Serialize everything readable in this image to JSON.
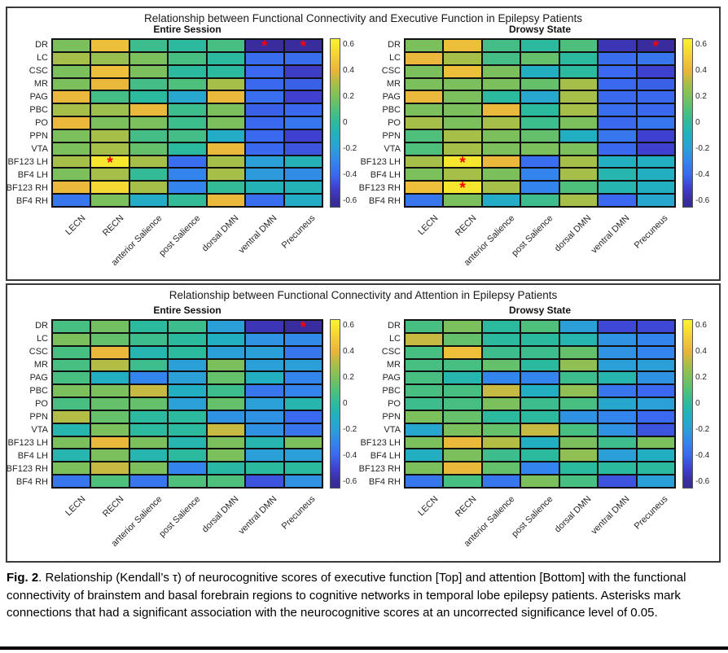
{
  "caption": {
    "label": "Fig. 2",
    "text": ". Relationship (Kendall’s τ) of neurocognitive scores of executive function [Top] and attention [Bottom] with the functional connectivity of brainstem and basal forebrain regions to cognitive networks in temporal lobe epilepsy patients. Asterisks mark connections that had a significant association with the neurocognitive scores at an uncorrected significance level of 0.05."
  },
  "annotations": {
    "significant_marker": "*"
  },
  "colors": {
    "significant_marker": "#ff0000",
    "cell_border": "#111111",
    "panel_border": "#3a3a3a",
    "parula_stops": [
      [
        -0.65,
        "#362C97"
      ],
      [
        -0.6,
        "#392C9E"
      ],
      [
        -0.5,
        "#4040D0"
      ],
      [
        -0.4,
        "#3A68EE"
      ],
      [
        -0.3,
        "#3384EC"
      ],
      [
        -0.2,
        "#2B9FD8"
      ],
      [
        -0.1,
        "#22AFC2"
      ],
      [
        0,
        "#2CBA9E"
      ],
      [
        0.1,
        "#4EC07C"
      ],
      [
        0.2,
        "#7BC05C"
      ],
      [
        0.3,
        "#A5BF49"
      ],
      [
        0.4,
        "#E8B43A"
      ],
      [
        0.5,
        "#F2CA3A"
      ],
      [
        0.6,
        "#F7E62E"
      ],
      [
        0.65,
        "#F9F235"
      ]
    ]
  },
  "chart_data": [
    {
      "type": "heatmap",
      "title": "Relationship between Functional Connectivity and Executive Function in Epilepsy Patients",
      "row_labels": [
        "DR",
        "LC",
        "CSC",
        "MR",
        "PAG",
        "PBC",
        "PO",
        "PPN",
        "VTA",
        "BF123 LH",
        "BF4 LH",
        "BF123 RH",
        "BF4 RH"
      ],
      "col_labels": [
        "LECN",
        "RECN",
        "anterior Salience",
        "post Salience",
        "dorsal DMN",
        "ventral DMN",
        "Precuneus"
      ],
      "value_range": [
        -0.6,
        0.6
      ],
      "colorbar_ticks": [
        "0.6",
        "0.4",
        "0.2",
        "0",
        "-0.2",
        "-0.4",
        "-0.6"
      ],
      "subplots": [
        {
          "title": "Entire Session",
          "values": [
            [
              0.2,
              0.45,
              0.05,
              0.0,
              0.08,
              -0.6,
              -0.6
            ],
            [
              0.3,
              0.27,
              0.2,
              0.08,
              0.0,
              -0.38,
              -0.38
            ],
            [
              0.2,
              0.45,
              0.2,
              0.0,
              0.0,
              -0.4,
              -0.52
            ],
            [
              0.2,
              0.42,
              0.07,
              0.1,
              0.3,
              -0.4,
              -0.42
            ],
            [
              0.42,
              0.07,
              0.0,
              -0.15,
              0.42,
              -0.38,
              -0.5
            ],
            [
              0.3,
              0.28,
              0.42,
              0.05,
              0.2,
              -0.42,
              -0.4
            ],
            [
              0.42,
              0.2,
              0.2,
              0.05,
              0.2,
              -0.4,
              -0.35
            ],
            [
              0.2,
              0.3,
              0.07,
              0.07,
              -0.12,
              -0.4,
              -0.5
            ],
            [
              0.2,
              0.3,
              0.15,
              0.0,
              0.42,
              -0.4,
              -0.45
            ],
            [
              0.3,
              0.6,
              0.3,
              -0.38,
              0.3,
              -0.2,
              -0.07
            ],
            [
              0.2,
              0.3,
              0.02,
              -0.3,
              0.3,
              -0.22,
              -0.27
            ],
            [
              0.42,
              0.55,
              0.3,
              -0.3,
              0.02,
              -0.07,
              -0.07
            ],
            [
              -0.35,
              0.2,
              -0.12,
              0.02,
              0.42,
              -0.38,
              -0.12
            ]
          ],
          "significant": [
            [
              "DR",
              "ventral DMN"
            ],
            [
              "DR",
              "Precuneus"
            ],
            [
              "BF123 LH",
              "RECN"
            ]
          ]
        },
        {
          "title": "Drowsy State",
          "values": [
            [
              0.2,
              0.45,
              0.07,
              0.0,
              0.1,
              -0.55,
              -0.6
            ],
            [
              0.42,
              0.3,
              0.07,
              0.15,
              0.0,
              -0.38,
              -0.35
            ],
            [
              0.2,
              0.45,
              0.2,
              -0.1,
              0.0,
              -0.4,
              -0.5
            ],
            [
              0.2,
              0.2,
              0.2,
              0.15,
              0.3,
              -0.4,
              -0.42
            ],
            [
              0.42,
              0.2,
              0.0,
              -0.15,
              0.3,
              -0.4,
              -0.4
            ],
            [
              0.2,
              0.2,
              0.42,
              0.0,
              0.3,
              -0.38,
              -0.4
            ],
            [
              0.3,
              0.2,
              0.3,
              0.05,
              0.2,
              -0.4,
              -0.35
            ],
            [
              0.1,
              0.3,
              0.2,
              0.15,
              -0.1,
              -0.35,
              -0.5
            ],
            [
              0.1,
              0.3,
              0.2,
              0.2,
              0.2,
              -0.4,
              -0.5
            ],
            [
              0.3,
              0.6,
              0.42,
              -0.38,
              0.3,
              -0.1,
              -0.1
            ],
            [
              0.2,
              0.3,
              0.2,
              -0.3,
              0.3,
              -0.05,
              -0.1
            ],
            [
              0.45,
              0.6,
              0.3,
              -0.3,
              0.1,
              -0.05,
              -0.1
            ],
            [
              -0.35,
              0.2,
              -0.12,
              0.05,
              0.3,
              -0.4,
              -0.15
            ]
          ],
          "significant": [
            [
              "DR",
              "Precuneus"
            ],
            [
              "BF123 LH",
              "RECN"
            ],
            [
              "BF123 RH",
              "RECN"
            ]
          ]
        }
      ]
    },
    {
      "type": "heatmap",
      "title": "Relationship between Functional Connectivity and Attention in Epilepsy Patients",
      "row_labels": [
        "DR",
        "LC",
        "CSC",
        "MR",
        "PAG",
        "PBC",
        "PO",
        "PPN",
        "VTA",
        "BF123 LH",
        "BF4 LH",
        "BF123 RH",
        "BF4 RH"
      ],
      "col_labels": [
        "LECN",
        "RECN",
        "anterior Salience",
        "post Salience",
        "dorsal DMN",
        "ventral DMN",
        "Precuneus"
      ],
      "value_range": [
        -0.6,
        0.6
      ],
      "colorbar_ticks": [
        "0.6",
        "0.4",
        "0.2",
        "0",
        "-0.2",
        "-0.4",
        "-0.6"
      ],
      "subplots": [
        {
          "title": "Entire Session",
          "values": [
            [
              0.08,
              0.18,
              0.0,
              0.05,
              -0.2,
              -0.55,
              -0.6
            ],
            [
              0.2,
              0.15,
              0.05,
              0.0,
              -0.1,
              -0.25,
              -0.28
            ],
            [
              0.08,
              0.42,
              -0.05,
              0.0,
              -0.2,
              -0.2,
              -0.35
            ],
            [
              0.08,
              0.32,
              0.05,
              -0.2,
              0.2,
              -0.2,
              -0.2
            ],
            [
              0.08,
              -0.1,
              -0.3,
              -0.2,
              0.15,
              -0.1,
              -0.3
            ],
            [
              0.2,
              0.2,
              0.35,
              -0.1,
              0.05,
              -0.35,
              -0.3
            ],
            [
              0.08,
              0.15,
              0.15,
              -0.2,
              0.15,
              -0.2,
              -0.05
            ],
            [
              0.32,
              0.15,
              0.0,
              0.0,
              -0.25,
              -0.25,
              -0.4
            ],
            [
              -0.05,
              0.2,
              0.0,
              0.0,
              0.35,
              -0.25,
              -0.35
            ],
            [
              0.2,
              0.42,
              0.2,
              -0.05,
              0.2,
              -0.05,
              0.2
            ],
            [
              -0.05,
              0.2,
              -0.05,
              0.0,
              0.2,
              -0.2,
              -0.2
            ],
            [
              0.2,
              0.35,
              0.2,
              -0.3,
              -0.02,
              0.0,
              0.0
            ],
            [
              -0.35,
              0.1,
              -0.35,
              0.1,
              0.1,
              -0.45,
              -0.25
            ]
          ],
          "significant": [
            [
              "DR",
              "Precuneus"
            ]
          ]
        },
        {
          "title": "Drowsy State",
          "values": [
            [
              0.08,
              0.2,
              0.0,
              0.1,
              -0.2,
              -0.48,
              -0.48
            ],
            [
              0.35,
              0.15,
              0.0,
              0.0,
              -0.05,
              -0.25,
              -0.3
            ],
            [
              0.08,
              0.45,
              0.05,
              0.05,
              0.15,
              -0.25,
              -0.3
            ],
            [
              0.08,
              0.08,
              0.15,
              0.0,
              0.25,
              -0.2,
              -0.2
            ],
            [
              0.08,
              -0.05,
              -0.3,
              -0.3,
              0.05,
              -0.05,
              -0.25
            ],
            [
              0.08,
              0.08,
              0.35,
              -0.1,
              0.25,
              -0.35,
              -0.4
            ],
            [
              0.05,
              0.08,
              0.2,
              0.05,
              0.08,
              -0.15,
              -0.2
            ],
            [
              0.2,
              0.15,
              0.0,
              0.0,
              -0.25,
              -0.3,
              -0.4
            ],
            [
              -0.15,
              0.2,
              0.15,
              0.35,
              0.08,
              -0.25,
              -0.45
            ],
            [
              0.2,
              0.42,
              0.32,
              -0.1,
              0.2,
              0.05,
              0.2
            ],
            [
              -0.1,
              0.2,
              0.05,
              0.0,
              0.25,
              -0.2,
              -0.1
            ],
            [
              0.2,
              0.42,
              0.15,
              -0.3,
              0.0,
              0.0,
              0.0
            ],
            [
              -0.35,
              0.08,
              -0.35,
              0.2,
              0.08,
              -0.45,
              -0.2
            ]
          ],
          "significant": []
        }
      ]
    }
  ]
}
